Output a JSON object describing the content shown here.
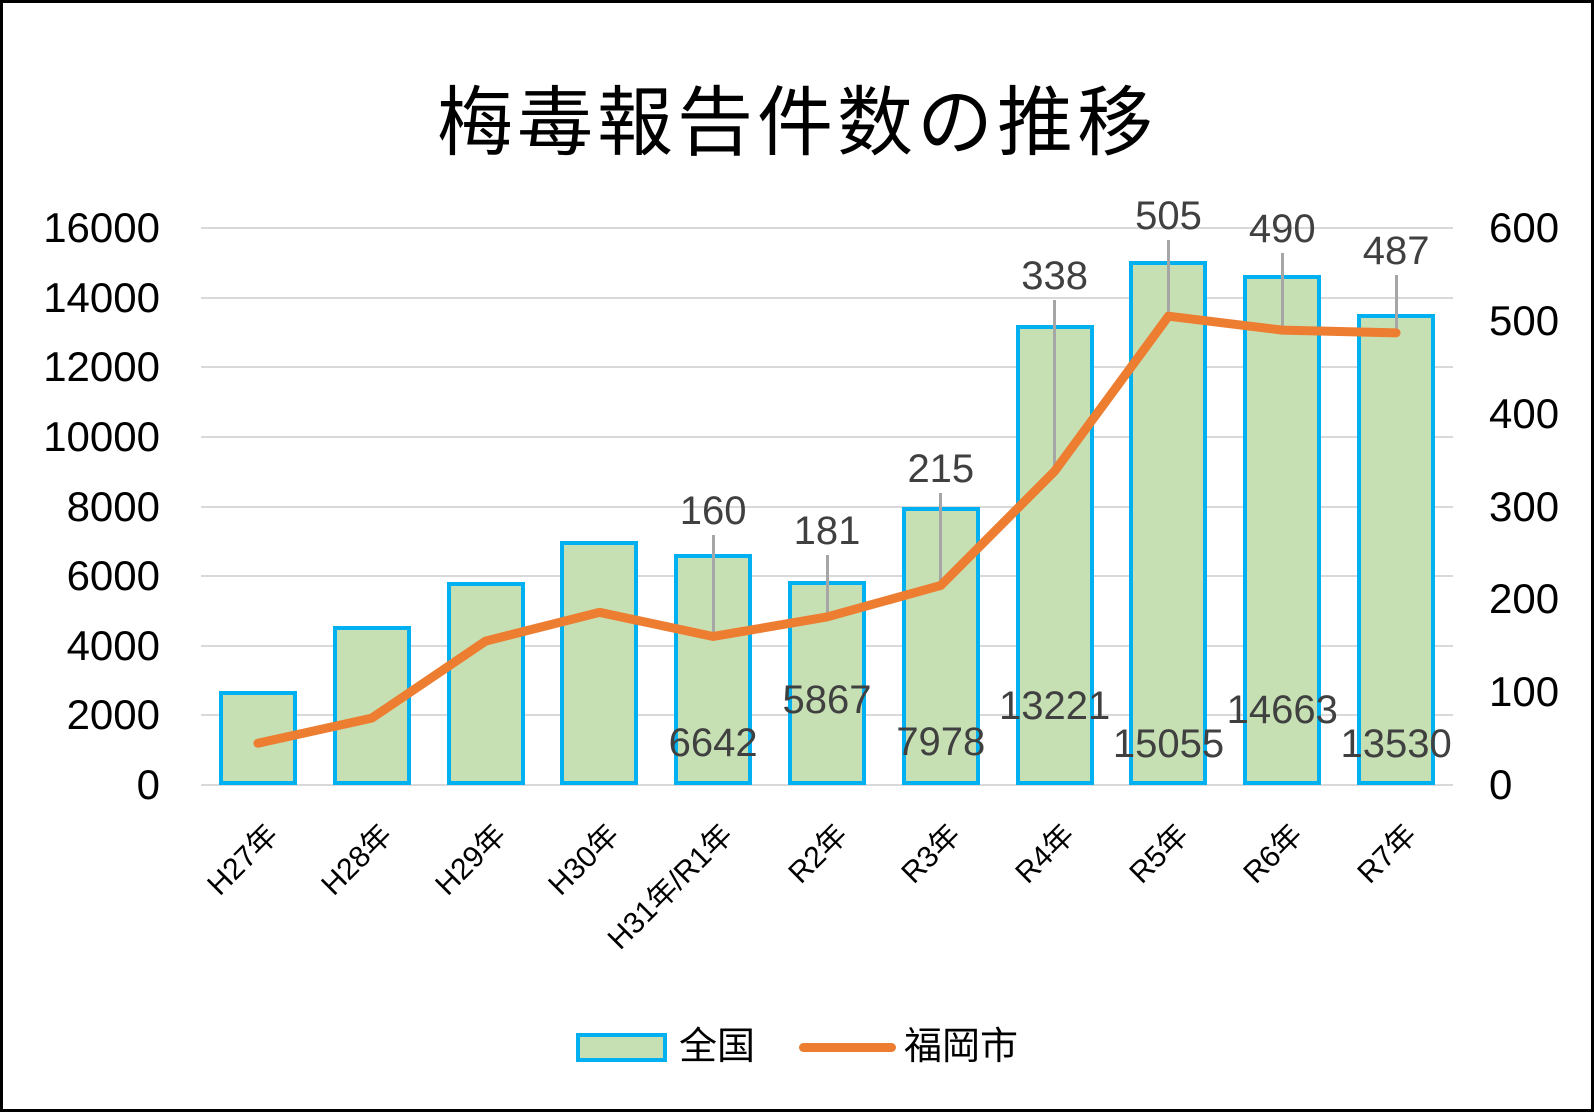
{
  "title": "梅毒報告件数の推移",
  "legend": [
    {
      "label": "全国",
      "type": "bar"
    },
    {
      "label": "福岡市",
      "type": "line"
    }
  ],
  "colors": {
    "bar_fill": "#c6e0b4",
    "bar_border": "#00b0f0",
    "line": "#ed7d31",
    "gridline": "#d9d9d9",
    "leader_line": "#a6a6a6",
    "data_label": "#404040",
    "axis_label": "#000000",
    "background": "#ffffff",
    "frame_border": "#000000"
  },
  "chart_data": {
    "type": "combo-bar-line",
    "title": "梅毒報告件数の推移",
    "categories": [
      "H27年",
      "H28年",
      "H29年",
      "H30年",
      "H31年/R1年",
      "R2年",
      "R3年",
      "R4年",
      "R5年",
      "R6年",
      "R7年"
    ],
    "series": [
      {
        "name": "全国",
        "type": "bar",
        "axis": "left",
        "values": [
          2690,
          4575,
          5826,
          7007,
          6642,
          5867,
          7978,
          13221,
          15055,
          14663,
          13530
        ],
        "point_labels": [
          null,
          null,
          null,
          null,
          "6642",
          "5867",
          "7978",
          "13221",
          "15055",
          "14663",
          "13530"
        ]
      },
      {
        "name": "福岡市",
        "type": "line",
        "axis": "right",
        "values": [
          45,
          72,
          155,
          186,
          160,
          181,
          215,
          338,
          505,
          490,
          487
        ],
        "point_labels": [
          null,
          null,
          null,
          null,
          "160",
          "181",
          "215",
          "338",
          "505",
          "490",
          "487"
        ]
      }
    ],
    "left_axis": {
      "min": 0,
      "max": 16000,
      "ticks": [
        "0",
        "2000",
        "4000",
        "6000",
        "8000",
        "10000",
        "12000",
        "14000",
        "16000"
      ]
    },
    "right_axis": {
      "min": 0,
      "max": 600,
      "ticks": [
        "0",
        "100",
        "200",
        "300",
        "400",
        "500",
        "600"
      ]
    },
    "grid": "horizontal-only",
    "legend_position": "bottom"
  }
}
